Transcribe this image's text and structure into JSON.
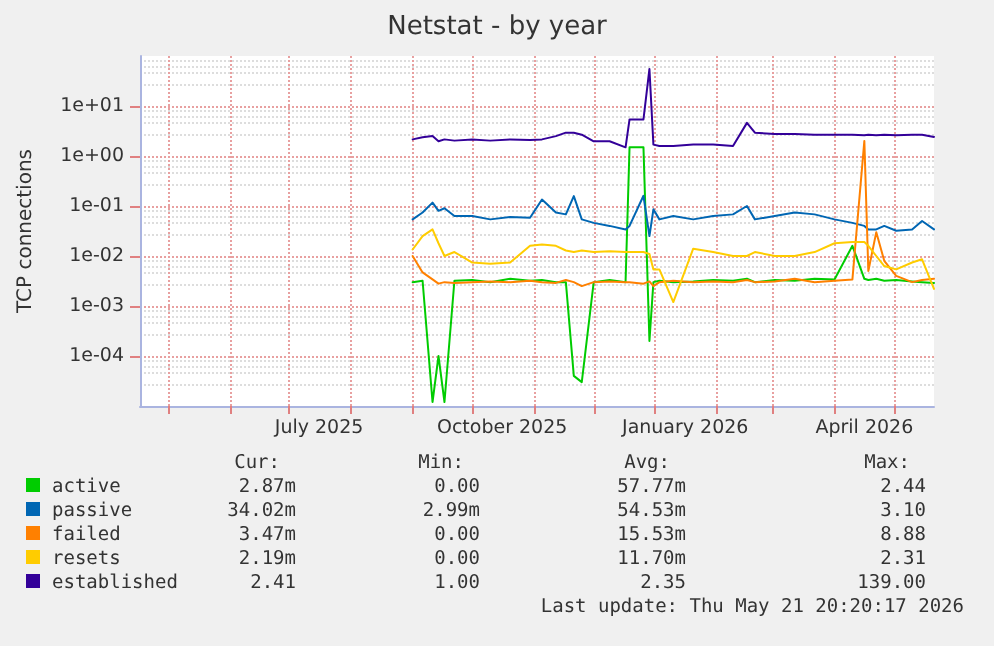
{
  "chart_data": {
    "type": "line",
    "title": "Netstat - by year",
    "ylabel": "TCP connections",
    "log": "y",
    "grid": true,
    "legend": "bottom",
    "marker": "none",
    "xlim": [
      "2025-04-17",
      "2026-05-21"
    ],
    "ylim": [
      1e-05,
      100
    ],
    "yticks": [
      {
        "value": 10,
        "label": "1e+01"
      },
      {
        "value": 1,
        "label": "1e+00"
      },
      {
        "value": 0.1,
        "label": "1e-01"
      },
      {
        "value": 0.01,
        "label": "1e-02"
      },
      {
        "value": 0.001,
        "label": "1e-03"
      },
      {
        "value": 0.0001,
        "label": "1e-04"
      }
    ],
    "xticks": [
      {
        "value": "2025-05-01",
        "label": null
      },
      {
        "value": "2025-06-01",
        "label": null
      },
      {
        "value": "2025-07-01",
        "label": null
      },
      {
        "value": "2025-07-16",
        "label": "July 2025"
      },
      {
        "value": "2025-08-01",
        "label": null
      },
      {
        "value": "2025-09-01",
        "label": null
      },
      {
        "value": "2025-10-01",
        "label": null
      },
      {
        "value": "2025-10-16",
        "label": "October 2025"
      },
      {
        "value": "2025-11-01",
        "label": null
      },
      {
        "value": "2025-12-01",
        "label": null
      },
      {
        "value": "2026-01-01",
        "label": null
      },
      {
        "value": "2026-01-16",
        "label": "January 2026"
      },
      {
        "value": "2026-02-01",
        "label": null
      },
      {
        "value": "2026-03-01",
        "label": null
      },
      {
        "value": "2026-04-01",
        "label": null
      },
      {
        "value": "2026-04-16",
        "label": "April 2026"
      },
      {
        "value": "2026-05-01",
        "label": null
      }
    ],
    "x": [
      "2025-09-01",
      "2025-09-06",
      "2025-09-11",
      "2025-09-14",
      "2025-09-17",
      "2025-09-22",
      "2025-10-01",
      "2025-10-10",
      "2025-10-20",
      "2025-10-30",
      "2025-11-05",
      "2025-11-12",
      "2025-11-17",
      "2025-11-21",
      "2025-11-25",
      "2025-12-01",
      "2025-12-09",
      "2025-12-17",
      "2025-12-19",
      "2025-12-26",
      "2025-12-29",
      "2025-12-31",
      "2026-01-03",
      "2026-01-10",
      "2026-01-20",
      "2026-01-30",
      "2026-02-09",
      "2026-02-16",
      "2026-02-20",
      "2026-03-02",
      "2026-03-12",
      "2026-03-22",
      "2026-04-01",
      "2026-04-10",
      "2026-04-16",
      "2026-04-18",
      "2026-04-22",
      "2026-04-26",
      "2026-05-02",
      "2026-05-10",
      "2026-05-15",
      "2026-05-21"
    ],
    "series": [
      {
        "name": "active",
        "color": "#00cc00",
        "values": [
          0.003,
          0.0032,
          1.2e-05,
          0.0001,
          1.2e-05,
          0.0032,
          0.0033,
          0.003,
          0.0035,
          0.0032,
          0.0033,
          0.003,
          0.003,
          4e-05,
          3e-05,
          0.003,
          0.0033,
          0.003,
          1.5,
          1.5,
          0.0002,
          0.003,
          0.0032,
          0.003,
          0.0031,
          0.0033,
          0.0032,
          0.0035,
          0.003,
          0.0033,
          0.0032,
          0.0035,
          0.0034,
          0.016,
          0.0035,
          0.0033,
          0.0035,
          0.0032,
          0.0033,
          0.0031,
          0.003,
          0.0029
        ]
      },
      {
        "name": "passive",
        "color": "#0066b3",
        "values": [
          0.054,
          0.074,
          0.117,
          0.08,
          0.09,
          0.063,
          0.063,
          0.054,
          0.06,
          0.058,
          0.135,
          0.074,
          0.068,
          0.158,
          0.054,
          0.046,
          0.04,
          0.034,
          0.04,
          0.16,
          0.025,
          0.086,
          0.054,
          0.063,
          0.054,
          0.063,
          0.068,
          0.1,
          0.054,
          0.063,
          0.074,
          0.068,
          0.054,
          0.046,
          0.04,
          0.034,
          0.034,
          0.04,
          0.032,
          0.034,
          0.05,
          0.034
        ]
      },
      {
        "name": "failed",
        "color": "#ff8000",
        "values": [
          0.01,
          0.0047,
          0.0034,
          0.0028,
          0.003,
          0.0029,
          0.003,
          0.0031,
          0.003,
          0.0032,
          0.003,
          0.0029,
          0.0033,
          0.003,
          0.0025,
          0.003,
          0.0031,
          0.003,
          0.003,
          0.0028,
          0.0031,
          0.0025,
          0.003,
          0.0032,
          0.003,
          0.0031,
          0.003,
          0.0033,
          0.003,
          0.0031,
          0.0035,
          0.003,
          0.0032,
          0.0034,
          2.0,
          0.005,
          0.03,
          0.008,
          0.004,
          0.003,
          0.0033,
          0.0035
        ]
      },
      {
        "name": "resets",
        "color": "#ffcc00",
        "values": [
          0.0135,
          0.025,
          0.034,
          0.018,
          0.01,
          0.012,
          0.0074,
          0.007,
          0.0074,
          0.016,
          0.017,
          0.016,
          0.0129,
          0.012,
          0.0129,
          0.012,
          0.0125,
          0.012,
          0.012,
          0.012,
          0.011,
          0.0054,
          0.0054,
          0.0012,
          0.014,
          0.012,
          0.01,
          0.01,
          0.012,
          0.01,
          0.01,
          0.012,
          0.018,
          0.019,
          0.019,
          0.016,
          0.01,
          0.0063,
          0.0054,
          0.0074,
          0.0086,
          0.0022
        ]
      },
      {
        "name": "established",
        "color": "#330099",
        "values": [
          2.15,
          2.36,
          2.5,
          1.97,
          2.15,
          2.03,
          2.15,
          2.03,
          2.15,
          2.1,
          2.15,
          2.5,
          2.93,
          2.93,
          2.67,
          1.97,
          1.97,
          1.49,
          5.4,
          5.4,
          55,
          1.69,
          1.58,
          1.58,
          1.69,
          1.69,
          1.58,
          4.6,
          2.93,
          2.75,
          2.75,
          2.67,
          2.67,
          2.67,
          2.6,
          2.67,
          2.6,
          2.67,
          2.6,
          2.67,
          2.67,
          2.41
        ]
      }
    ],
    "annotations": [
      "Cur:",
      "Min:",
      "Avg:",
      "Max:",
      "2.87m",
      "0.00",
      "57.77m",
      "2.44",
      "34.02m",
      "2.99m",
      "54.53m",
      "3.10",
      "3.47m",
      "0.00",
      "15.53m",
      "8.88",
      "2.19m",
      "0.00",
      "11.70m",
      "2.31",
      "2.41",
      "1.00",
      "2.35",
      "139.00",
      "Last update: Thu May 21 20:20:17 2026"
    ]
  }
}
